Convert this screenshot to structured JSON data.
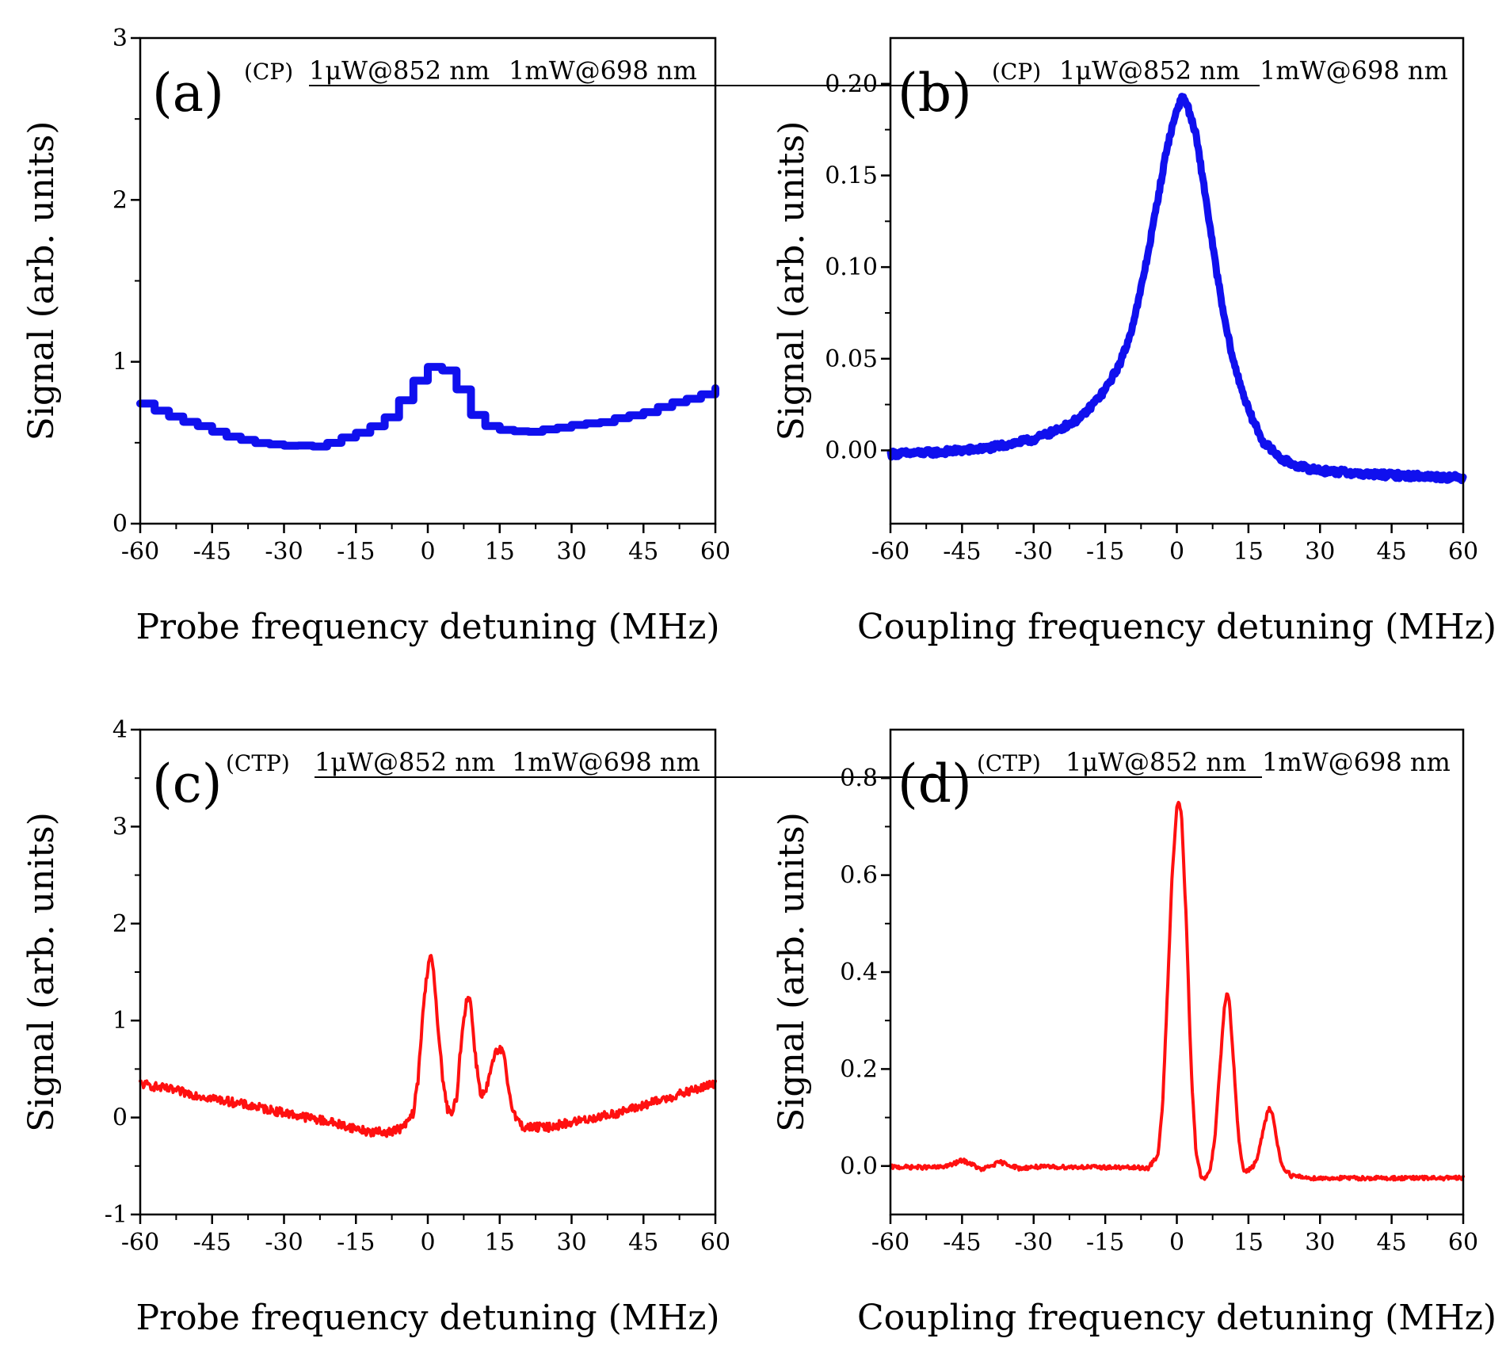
{
  "colors": {
    "blue": "#1010ee",
    "red": "#ff1010",
    "axis": "#000000"
  },
  "chart_data": [
    {
      "type": "line",
      "panel_label": "(a)",
      "tag": "(CP)",
      "conditions": [
        "1μW@852 nm",
        "1mW@698 nm"
      ],
      "xlabel": "Probe frequency detuning (MHz)",
      "ylabel": "Signal (arb. units)",
      "xlim": [
        -60,
        60
      ],
      "ylim": [
        0,
        3
      ],
      "xticks": [
        -60,
        -45,
        -30,
        -15,
        0,
        15,
        30,
        45,
        60
      ],
      "xtick_labels": [
        "-60",
        "-45",
        "-30",
        "-15",
        "0",
        "15",
        "30",
        "45",
        "60"
      ],
      "yticks": [
        0,
        1,
        2,
        3
      ],
      "ytick_labels": [
        "0",
        "1",
        "2",
        "3"
      ],
      "color": "blue",
      "line_style": "step",
      "series": [
        {
          "name": "Signal",
          "x": [
            -60,
            -57,
            -54,
            -51,
            -48,
            -45,
            -42,
            -39,
            -36,
            -33,
            -30,
            -27,
            -24,
            -21,
            -18,
            -15,
            -12,
            -9,
            -6,
            -3,
            0,
            3,
            6,
            9,
            12,
            15,
            18,
            21,
            24,
            27,
            30,
            33,
            36,
            39,
            42,
            45,
            48,
            51,
            54,
            57,
            60
          ],
          "y": [
            0.74,
            0.7,
            0.66,
            0.63,
            0.6,
            0.57,
            0.54,
            0.52,
            0.5,
            0.49,
            0.48,
            0.48,
            0.48,
            0.5,
            0.53,
            0.56,
            0.6,
            0.66,
            0.76,
            0.88,
            0.97,
            0.95,
            0.83,
            0.67,
            0.6,
            0.58,
            0.57,
            0.57,
            0.58,
            0.59,
            0.61,
            0.62,
            0.63,
            0.65,
            0.67,
            0.69,
            0.72,
            0.75,
            0.77,
            0.8,
            0.84
          ]
        }
      ],
      "noise": 0.008
    },
    {
      "type": "line",
      "panel_label": "(b)",
      "tag": "(CP)",
      "conditions": [
        "1μW@852 nm",
        "1mW@698 nm"
      ],
      "xlabel": "Coupling frequency detuning (MHz)",
      "ylabel": "Signal (arb. units)",
      "xlim": [
        -60,
        60
      ],
      "ylim": [
        -0.04,
        0.225
      ],
      "xticks": [
        -60,
        -45,
        -30,
        -15,
        0,
        15,
        30,
        45,
        60
      ],
      "xtick_labels": [
        "-60",
        "-45",
        "-30",
        "-15",
        "0",
        "15",
        "30",
        "45",
        "60"
      ],
      "yticks": [
        0,
        0.05,
        0.1,
        0.15,
        0.2
      ],
      "ytick_labels": [
        "0.00",
        "0.05",
        "0.10",
        "0.15",
        "0.20"
      ],
      "color": "blue",
      "line_style": "line",
      "series": [
        {
          "name": "Signal",
          "x": [
            -60,
            -50,
            -40,
            -30,
            -25,
            -20,
            -15,
            -12,
            -10,
            -8,
            -6,
            -4,
            -2,
            0,
            1,
            2,
            4,
            6,
            8,
            10,
            12,
            15,
            18,
            22,
            26,
            30,
            40,
            50,
            60
          ],
          "y": [
            -0.002,
            -0.001,
            0.001,
            0.006,
            0.011,
            0.018,
            0.033,
            0.047,
            0.061,
            0.082,
            0.108,
            0.137,
            0.166,
            0.186,
            0.192,
            0.19,
            0.172,
            0.139,
            0.103,
            0.071,
            0.047,
            0.022,
            0.005,
            -0.005,
            -0.009,
            -0.011,
            -0.013,
            -0.014,
            -0.015
          ]
        }
      ],
      "noise": 0.0017
    },
    {
      "type": "line",
      "panel_label": "(c)",
      "tag": "(CTP)",
      "conditions": [
        "1μW@852 nm",
        "1mW@698 nm"
      ],
      "xlabel": "Probe frequency detuning (MHz)",
      "ylabel": "Signal (arb. units)",
      "xlim": [
        -60,
        60
      ],
      "ylim": [
        -1,
        4
      ],
      "xticks": [
        -60,
        -45,
        -30,
        -15,
        0,
        15,
        30,
        45,
        60
      ],
      "xtick_labels": [
        "-60",
        "-45",
        "-30",
        "-15",
        "0",
        "15",
        "30",
        "45",
        "60"
      ],
      "yticks": [
        -1,
        0,
        1,
        2,
        3,
        4
      ],
      "ytick_labels": [
        "-1",
        "0",
        "1",
        "2",
        "3",
        "4"
      ],
      "color": "red",
      "line_style": "line",
      "series": [
        {
          "name": "Signal",
          "x": [
            -60,
            -50,
            -40,
            -30,
            -20,
            -12,
            -8,
            -5,
            -3,
            -2,
            -1,
            0,
            0.5,
            1,
            2,
            3,
            4,
            5,
            6,
            7,
            8,
            8.5,
            9,
            10,
            11,
            12,
            13,
            14,
            15,
            15.5,
            16,
            17,
            18,
            19,
            20,
            22,
            25,
            30,
            40,
            50,
            60
          ],
          "y": [
            0.35,
            0.25,
            0.15,
            0.05,
            -0.05,
            -0.15,
            -0.15,
            -0.1,
            0.05,
            0.4,
            1.1,
            1.55,
            1.7,
            1.6,
            1.0,
            0.45,
            0.1,
            0.02,
            0.2,
            0.8,
            1.2,
            1.27,
            1.15,
            0.6,
            0.25,
            0.25,
            0.45,
            0.65,
            0.7,
            0.68,
            0.6,
            0.25,
            0.05,
            -0.05,
            -0.1,
            -0.1,
            -0.1,
            -0.05,
            0.05,
            0.2,
            0.35
          ]
        }
      ],
      "noise": 0.045
    },
    {
      "type": "line",
      "panel_label": "(d)",
      "tag": "(CTP)",
      "conditions": [
        "1μW@852 nm",
        "1mW@698 nm"
      ],
      "xlabel": "Coupling frequency detuning (MHz)",
      "ylabel": "Signal (arb. units)",
      "xlim": [
        -60,
        60
      ],
      "ylim": [
        -0.1,
        0.9
      ],
      "xticks": [
        -60,
        -45,
        -30,
        -15,
        0,
        15,
        30,
        45,
        60
      ],
      "xtick_labels": [
        "-60",
        "-45",
        "-30",
        "-15",
        "0",
        "15",
        "30",
        "45",
        "60"
      ],
      "yticks": [
        0,
        0.2,
        0.4,
        0.6,
        0.8
      ],
      "ytick_labels": [
        "0.0",
        "0.2",
        "0.4",
        "0.6",
        "0.8"
      ],
      "color": "red",
      "line_style": "line",
      "series": [
        {
          "name": "Signal",
          "x": [
            -60,
            -50,
            -47,
            -45,
            -43,
            -41,
            -39,
            -37,
            -35,
            -33,
            -30,
            -20,
            -6,
            -4,
            -3,
            -2,
            -1,
            0,
            0.5,
            1,
            2,
            3,
            4,
            5,
            6,
            7,
            8,
            9,
            10,
            10.5,
            11,
            12,
            13,
            14,
            15,
            16,
            17,
            18,
            19,
            19.5,
            20,
            21,
            22,
            24,
            28,
            40,
            60
          ],
          "y": [
            -0.002,
            -0.003,
            0.003,
            0.012,
            0.004,
            -0.008,
            0.0,
            0.008,
            0.002,
            -0.005,
            -0.002,
            -0.002,
            -0.004,
            0.02,
            0.12,
            0.35,
            0.6,
            0.74,
            0.75,
            0.72,
            0.5,
            0.2,
            0.03,
            -0.02,
            -0.025,
            -0.01,
            0.06,
            0.2,
            0.33,
            0.36,
            0.34,
            0.2,
            0.05,
            -0.01,
            -0.01,
            0.0,
            0.02,
            0.07,
            0.11,
            0.12,
            0.11,
            0.05,
            0.0,
            -0.02,
            -0.025,
            -0.025,
            -0.025
          ]
        }
      ],
      "noise": 0.004
    }
  ]
}
